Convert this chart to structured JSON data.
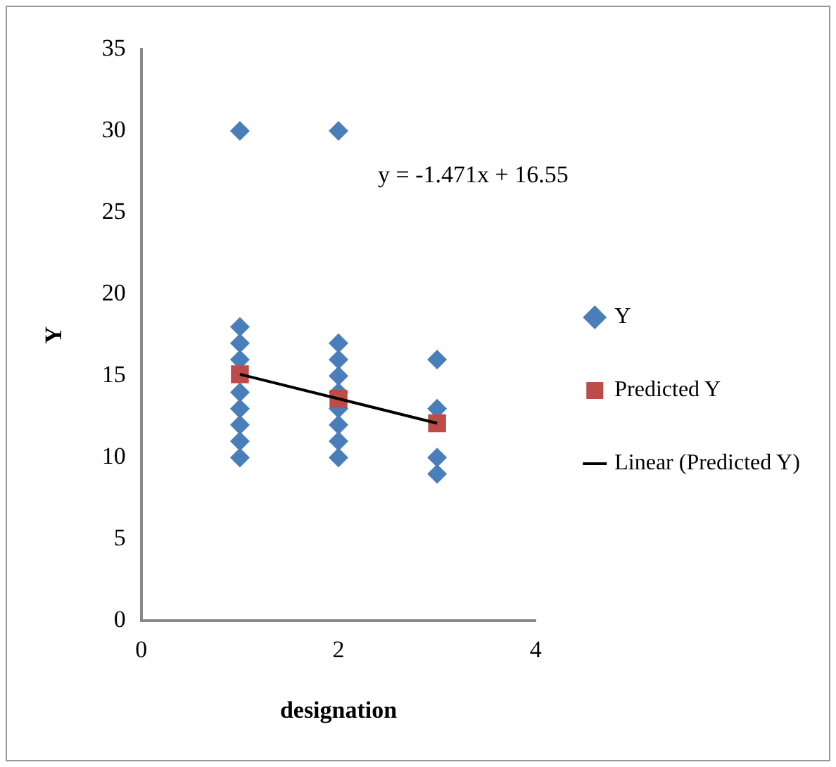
{
  "chart_data": {
    "type": "scatter",
    "xlabel": "designation",
    "ylabel": "Y",
    "xlim": [
      0,
      4
    ],
    "xticks": [
      0,
      2,
      4
    ],
    "ylim": [
      0,
      35
    ],
    "yticks": [
      0,
      5,
      10,
      15,
      20,
      25,
      30,
      35
    ],
    "grid": false,
    "legend": "right",
    "annotations": [
      "y = -1.471x + 16.55"
    ],
    "series": [
      {
        "name": "Y",
        "marker": "diamond",
        "color": "#4a7ebb",
        "x": [
          1,
          1,
          1,
          1,
          1,
          1,
          1,
          1,
          1,
          2,
          2,
          2,
          2,
          2,
          2,
          2,
          2,
          2,
          3,
          3,
          3,
          3
        ],
        "values": [
          30,
          18,
          17,
          16,
          14,
          13,
          12,
          11,
          10,
          30,
          17,
          16,
          15,
          14,
          13,
          12,
          11,
          10,
          16,
          13,
          10,
          9
        ]
      },
      {
        "name": "Predicted Y",
        "marker": "square",
        "color": "#be4b48",
        "x": [
          1,
          2,
          3
        ],
        "values": [
          15.1,
          13.6,
          12.1
        ]
      },
      {
        "name": "Linear (Predicted Y)",
        "type": "line",
        "marker": "none",
        "color": "#000000",
        "x": [
          1,
          3
        ],
        "values": [
          15.1,
          12.1
        ]
      }
    ]
  }
}
